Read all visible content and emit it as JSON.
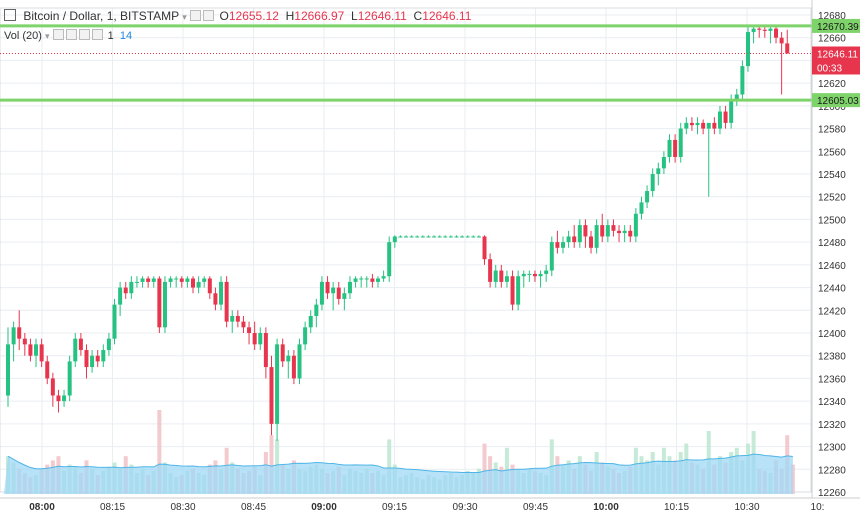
{
  "header": {
    "symbol_label": "Bitcoin / Dollar, 1, BITSTAMP",
    "open_key": "O",
    "open_value": "12655.12",
    "high_key": "H",
    "high_value": "12666.97",
    "low_key": "L",
    "low_value": "12646.11",
    "close_key": "C",
    "close_value": "12646.11",
    "volume_label": "Vol (20)",
    "volume_value_1": "1",
    "volume_value_2": "14"
  },
  "colors": {
    "up": "#26c281",
    "down": "#e8354e",
    "ma_fill": "#9fd8f6",
    "ma_line": "#4fb5e8",
    "hline": "#7ed36b",
    "grid": "#e9eef2",
    "axis_text": "#333333"
  },
  "price_tags": {
    "upper_line": "12670.39",
    "lower_line": "12605.03",
    "current_price": "12646.11",
    "countdown": "00:33"
  },
  "chart_data": {
    "type": "candlestick",
    "ylim": [
      12260,
      12680
    ],
    "y_ticks": [
      12260,
      12280,
      12300,
      12320,
      12340,
      12360,
      12380,
      12400,
      12420,
      12440,
      12460,
      12480,
      12500,
      12520,
      12540,
      12560,
      12580,
      12600,
      12620,
      12640,
      12660,
      12680
    ],
    "x_ticks": [
      "08:00",
      "08:15",
      "08:30",
      "08:45",
      "09:00",
      "09:15",
      "09:30",
      "09:45",
      "10:00",
      "10:15",
      "10:30",
      "10:"
    ],
    "x_ticks_bold": [
      "08:00",
      "09:00",
      "10:00"
    ],
    "horizontal_levels": [
      12670.39,
      12605.03
    ],
    "last_price": 12646.11,
    "candles": [
      [
        12345,
        12405,
        12335,
        12390
      ],
      [
        12390,
        12410,
        12375,
        12405
      ],
      [
        12405,
        12420,
        12385,
        12395
      ],
      [
        12395,
        12400,
        12380,
        12390
      ],
      [
        12390,
        12395,
        12375,
        12380
      ],
      [
        12380,
        12395,
        12370,
        12390
      ],
      [
        12390,
        12395,
        12370,
        12375
      ],
      [
        12375,
        12380,
        12355,
        12360
      ],
      [
        12360,
        12365,
        12335,
        12345
      ],
      [
        12345,
        12350,
        12330,
        12340
      ],
      [
        12340,
        12350,
        12335,
        12345
      ],
      [
        12345,
        12380,
        12340,
        12375
      ],
      [
        12375,
        12400,
        12370,
        12395
      ],
      [
        12395,
        12400,
        12380,
        12385
      ],
      [
        12385,
        12390,
        12360,
        12370
      ],
      [
        12370,
        12385,
        12365,
        12380
      ],
      [
        12380,
        12385,
        12370,
        12375
      ],
      [
        12375,
        12390,
        12370,
        12385
      ],
      [
        12385,
        12400,
        12380,
        12395
      ],
      [
        12395,
        12430,
        12390,
        12425
      ],
      [
        12425,
        12445,
        12415,
        12440
      ],
      [
        12440,
        12445,
        12430,
        12435
      ],
      [
        12435,
        12450,
        12430,
        12445
      ],
      [
        12445,
        12450,
        12440,
        12445
      ],
      [
        12445,
        12450,
        12440,
        12448
      ],
      [
        12448,
        12450,
        12440,
        12445
      ],
      [
        12445,
        12450,
        12440,
        12448
      ],
      [
        12448,
        12450,
        12400,
        12405
      ],
      [
        12405,
        12450,
        12400,
        12445
      ],
      [
        12445,
        12450,
        12440,
        12448
      ],
      [
        12448,
        12450,
        12440,
        12448
      ],
      [
        12448,
        12450,
        12440,
        12445
      ],
      [
        12445,
        12450,
        12440,
        12448
      ],
      [
        12448,
        12450,
        12435,
        12440
      ],
      [
        12440,
        12450,
        12435,
        12445
      ],
      [
        12445,
        12450,
        12440,
        12448
      ],
      [
        12448,
        12450,
        12430,
        12435
      ],
      [
        12435,
        12440,
        12420,
        12425
      ],
      [
        12425,
        12450,
        12420,
        12445
      ],
      [
        12445,
        12450,
        12405,
        12410
      ],
      [
        12410,
        12420,
        12400,
        12415
      ],
      [
        12415,
        12420,
        12405,
        12410
      ],
      [
        12410,
        12415,
        12400,
        12405
      ],
      [
        12405,
        12410,
        12390,
        12400
      ],
      [
        12400,
        12410,
        12385,
        12390
      ],
      [
        12390,
        12405,
        12385,
        12400
      ],
      [
        12400,
        12405,
        12360,
        12370
      ],
      [
        12370,
        12380,
        12310,
        12320
      ],
      [
        12320,
        12395,
        12305,
        12390
      ],
      [
        12390,
        12395,
        12370,
        12375
      ],
      [
        12375,
        12385,
        12360,
        12380
      ],
      [
        12380,
        12385,
        12355,
        12360
      ],
      [
        12360,
        12395,
        12355,
        12390
      ],
      [
        12390,
        12410,
        12385,
        12405
      ],
      [
        12405,
        12420,
        12400,
        12415
      ],
      [
        12415,
        12430,
        12405,
        12425
      ],
      [
        12425,
        12450,
        12420,
        12445
      ],
      [
        12445,
        12450,
        12430,
        12435
      ],
      [
        12435,
        12445,
        12420,
        12440
      ],
      [
        12440,
        12445,
        12425,
        12430
      ],
      [
        12430,
        12440,
        12420,
        12435
      ],
      [
        12435,
        12450,
        12430,
        12445
      ],
      [
        12445,
        12450,
        12440,
        12448
      ],
      [
        12448,
        12450,
        12440,
        12448
      ],
      [
        12448,
        12450,
        12440,
        12448
      ],
      [
        12448,
        12452,
        12440,
        12445
      ],
      [
        12445,
        12450,
        12440,
        12448
      ],
      [
        12448,
        12455,
        12445,
        12450
      ],
      [
        12450,
        12485,
        12445,
        12480
      ],
      [
        12480,
        12486,
        12475,
        12485
      ],
      [
        12485,
        12486,
        12484,
        12485
      ],
      [
        12485,
        12486,
        12484,
        12485
      ],
      [
        12485,
        12486,
        12484,
        12485
      ],
      [
        12485,
        12486,
        12484,
        12485
      ],
      [
        12485,
        12486,
        12484,
        12485
      ],
      [
        12485,
        12486,
        12484,
        12485
      ],
      [
        12485,
        12486,
        12484,
        12485
      ],
      [
        12485,
        12486,
        12484,
        12485
      ],
      [
        12485,
        12486,
        12484,
        12485
      ],
      [
        12485,
        12486,
        12484,
        12485
      ],
      [
        12485,
        12486,
        12484,
        12485
      ],
      [
        12485,
        12486,
        12484,
        12485
      ],
      [
        12485,
        12486,
        12484,
        12485
      ],
      [
        12485,
        12486,
        12484,
        12485
      ],
      [
        12485,
        12486,
        12484,
        12485
      ],
      [
        12485,
        12486,
        12460,
        12465
      ],
      [
        12465,
        12470,
        12440,
        12445
      ],
      [
        12445,
        12460,
        12440,
        12455
      ],
      [
        12455,
        12460,
        12440,
        12445
      ],
      [
        12445,
        12455,
        12440,
        12450
      ],
      [
        12450,
        12455,
        12420,
        12425
      ],
      [
        12425,
        12455,
        12420,
        12450
      ],
      [
        12450,
        12455,
        12440,
        12452
      ],
      [
        12452,
        12455,
        12445,
        12452
      ],
      [
        12452,
        12455,
        12445,
        12450
      ],
      [
        12450,
        12455,
        12440,
        12452
      ],
      [
        12452,
        12460,
        12445,
        12455
      ],
      [
        12455,
        12485,
        12450,
        12480
      ],
      [
        12480,
        12490,
        12470,
        12475
      ],
      [
        12475,
        12485,
        12470,
        12480
      ],
      [
        12480,
        12490,
        12475,
        12485
      ],
      [
        12485,
        12495,
        12475,
        12480
      ],
      [
        12480,
        12500,
        12475,
        12495
      ],
      [
        12495,
        12500,
        12475,
        12485
      ],
      [
        12485,
        12490,
        12470,
        12475
      ],
      [
        12475,
        12500,
        12470,
        12495
      ],
      [
        12495,
        12505,
        12480,
        12485
      ],
      [
        12485,
        12500,
        12480,
        12495
      ],
      [
        12495,
        12500,
        12485,
        12490
      ],
      [
        12490,
        12495,
        12480,
        12488
      ],
      [
        12488,
        12495,
        12480,
        12490
      ],
      [
        12490,
        12495,
        12480,
        12485
      ],
      [
        12485,
        12510,
        12480,
        12505
      ],
      [
        12505,
        12520,
        12500,
        12515
      ],
      [
        12515,
        12530,
        12510,
        12525
      ],
      [
        12525,
        12545,
        12520,
        12540
      ],
      [
        12540,
        12550,
        12530,
        12545
      ],
      [
        12545,
        12560,
        12540,
        12555
      ],
      [
        12555,
        12575,
        12550,
        12570
      ],
      [
        12570,
        12575,
        12550,
        12555
      ],
      [
        12555,
        12585,
        12550,
        12580
      ],
      [
        12580,
        12590,
        12575,
        12585
      ],
      [
        12585,
        12590,
        12578,
        12583
      ],
      [
        12583,
        12590,
        12575,
        12585
      ],
      [
        12585,
        12588,
        12575,
        12580
      ],
      [
        12580,
        12585,
        12520,
        12585
      ],
      [
        12585,
        12590,
        12575,
        12580
      ],
      [
        12580,
        12600,
        12575,
        12595
      ],
      [
        12595,
        12600,
        12580,
        12585
      ],
      [
        12585,
        12610,
        12580,
        12605
      ],
      [
        12605,
        12615,
        12600,
        12610
      ],
      [
        12610,
        12640,
        12605,
        12635
      ],
      [
        12635,
        12670,
        12630,
        12665
      ],
      [
        12665,
        12670,
        12655,
        12668
      ],
      [
        12668,
        12670,
        12660,
        12667
      ],
      [
        12667,
        12670,
        12660,
        12666
      ],
      [
        12666,
        12670,
        12655,
        12668
      ],
      [
        12668,
        12670,
        12655,
        12660
      ],
      [
        12660,
        12665,
        12610,
        12655
      ],
      [
        12655,
        12666.97,
        12646.11,
        12646.11
      ]
    ],
    "volumes": [
      18,
      15,
      12,
      10,
      8,
      9,
      12,
      14,
      16,
      18,
      11,
      14,
      13,
      10,
      16,
      12,
      9,
      11,
      13,
      15,
      12,
      18,
      14,
      10,
      12,
      9,
      11,
      40,
      15,
      10,
      8,
      9,
      11,
      12,
      10,
      9,
      14,
      16,
      12,
      22,
      15,
      12,
      10,
      11,
      13,
      9,
      20,
      28,
      26,
      14,
      12,
      16,
      12,
      11,
      13,
      14,
      12,
      10,
      11,
      13,
      9,
      12,
      11,
      10,
      12,
      10,
      11,
      9,
      26,
      14,
      8,
      9,
      10,
      8,
      7,
      9,
      8,
      7,
      9,
      10,
      8,
      9,
      11,
      10,
      12,
      24,
      18,
      15,
      13,
      22,
      14,
      12,
      10,
      12,
      11,
      10,
      9,
      26,
      18,
      14,
      16,
      12,
      18,
      14,
      11,
      20,
      15,
      13,
      12,
      10,
      11,
      13,
      22,
      18,
      16,
      20,
      14,
      22,
      18,
      16,
      20,
      24,
      15,
      14,
      12,
      30,
      14,
      18,
      15,
      20,
      22,
      16,
      24,
      30,
      12,
      11,
      10,
      16,
      12,
      28,
      14
    ]
  }
}
